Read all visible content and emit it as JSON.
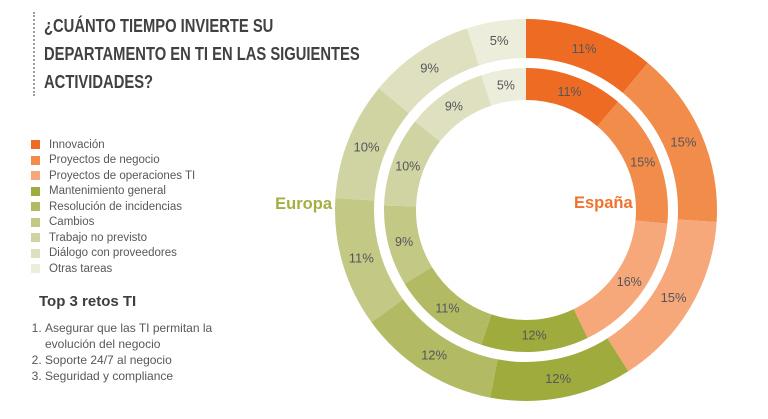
{
  "title": {
    "lines": [
      "¿CUÁNTO TIEMPO INVIERTE SU",
      "DEPARTAMENTO EN TI EN LAS SIGUIENTES",
      "ACTIVIDADES?"
    ]
  },
  "legend": {
    "items": [
      {
        "label": "Innovación",
        "color": "#ED6B23"
      },
      {
        "label": "Proyectos de negocio",
        "color": "#F18C4B"
      },
      {
        "label": "Proyectos de operaciones TI",
        "color": "#F6A87B"
      },
      {
        "label": "Mantenimiento general",
        "color": "#9FAB3C"
      },
      {
        "label": "Resolución de incidencias",
        "color": "#B2BA64"
      },
      {
        "label": "Cambios",
        "color": "#C3C885"
      },
      {
        "label": "Trabajo no previsto",
        "color": "#D0D4A3"
      },
      {
        "label": "Diálogo con proveedores",
        "color": "#DEE0C0"
      },
      {
        "label": "Otras tareas",
        "color": "#ECEDDA"
      }
    ]
  },
  "top3": {
    "heading": "Top 3 retos TI",
    "items": [
      "Asegurar que las TI permitan la evolución del negocio",
      "Soporte 24/7 al negocio",
      "Seguridad y compliance"
    ]
  },
  "chart_data": {
    "type": "pie",
    "variant": "double-donut",
    "title": "¿Cuánto tiempo invierte su departamento en TI en las siguientes actividades?",
    "start_angle": "12 o'clock, clockwise",
    "categories": [
      "Innovación",
      "Proyectos de negocio",
      "Proyectos de operaciones TI",
      "Mantenimiento general",
      "Resolución de incidencias",
      "Cambios",
      "Trabajo no previsto",
      "Diálogo con proveedores",
      "Otras tareas"
    ],
    "colors": [
      "#ED6B23",
      "#F18C4B",
      "#F6A87B",
      "#9FAB3C",
      "#B2BA64",
      "#C3C885",
      "#D0D4A3",
      "#DEE0C0",
      "#ECEDDA"
    ],
    "value_label_color": "#55565A",
    "series": [
      {
        "name": "Europa",
        "ring": "outer",
        "unit": "%",
        "label_color": "#A5AE43",
        "values": [
          11,
          15,
          15,
          12,
          12,
          11,
          10,
          9,
          5
        ]
      },
      {
        "name": "España",
        "ring": "inner",
        "unit": "%",
        "label_color": "#F0732D",
        "values": [
          11,
          15,
          16,
          12,
          11,
          9,
          10,
          9,
          5
        ]
      }
    ]
  }
}
